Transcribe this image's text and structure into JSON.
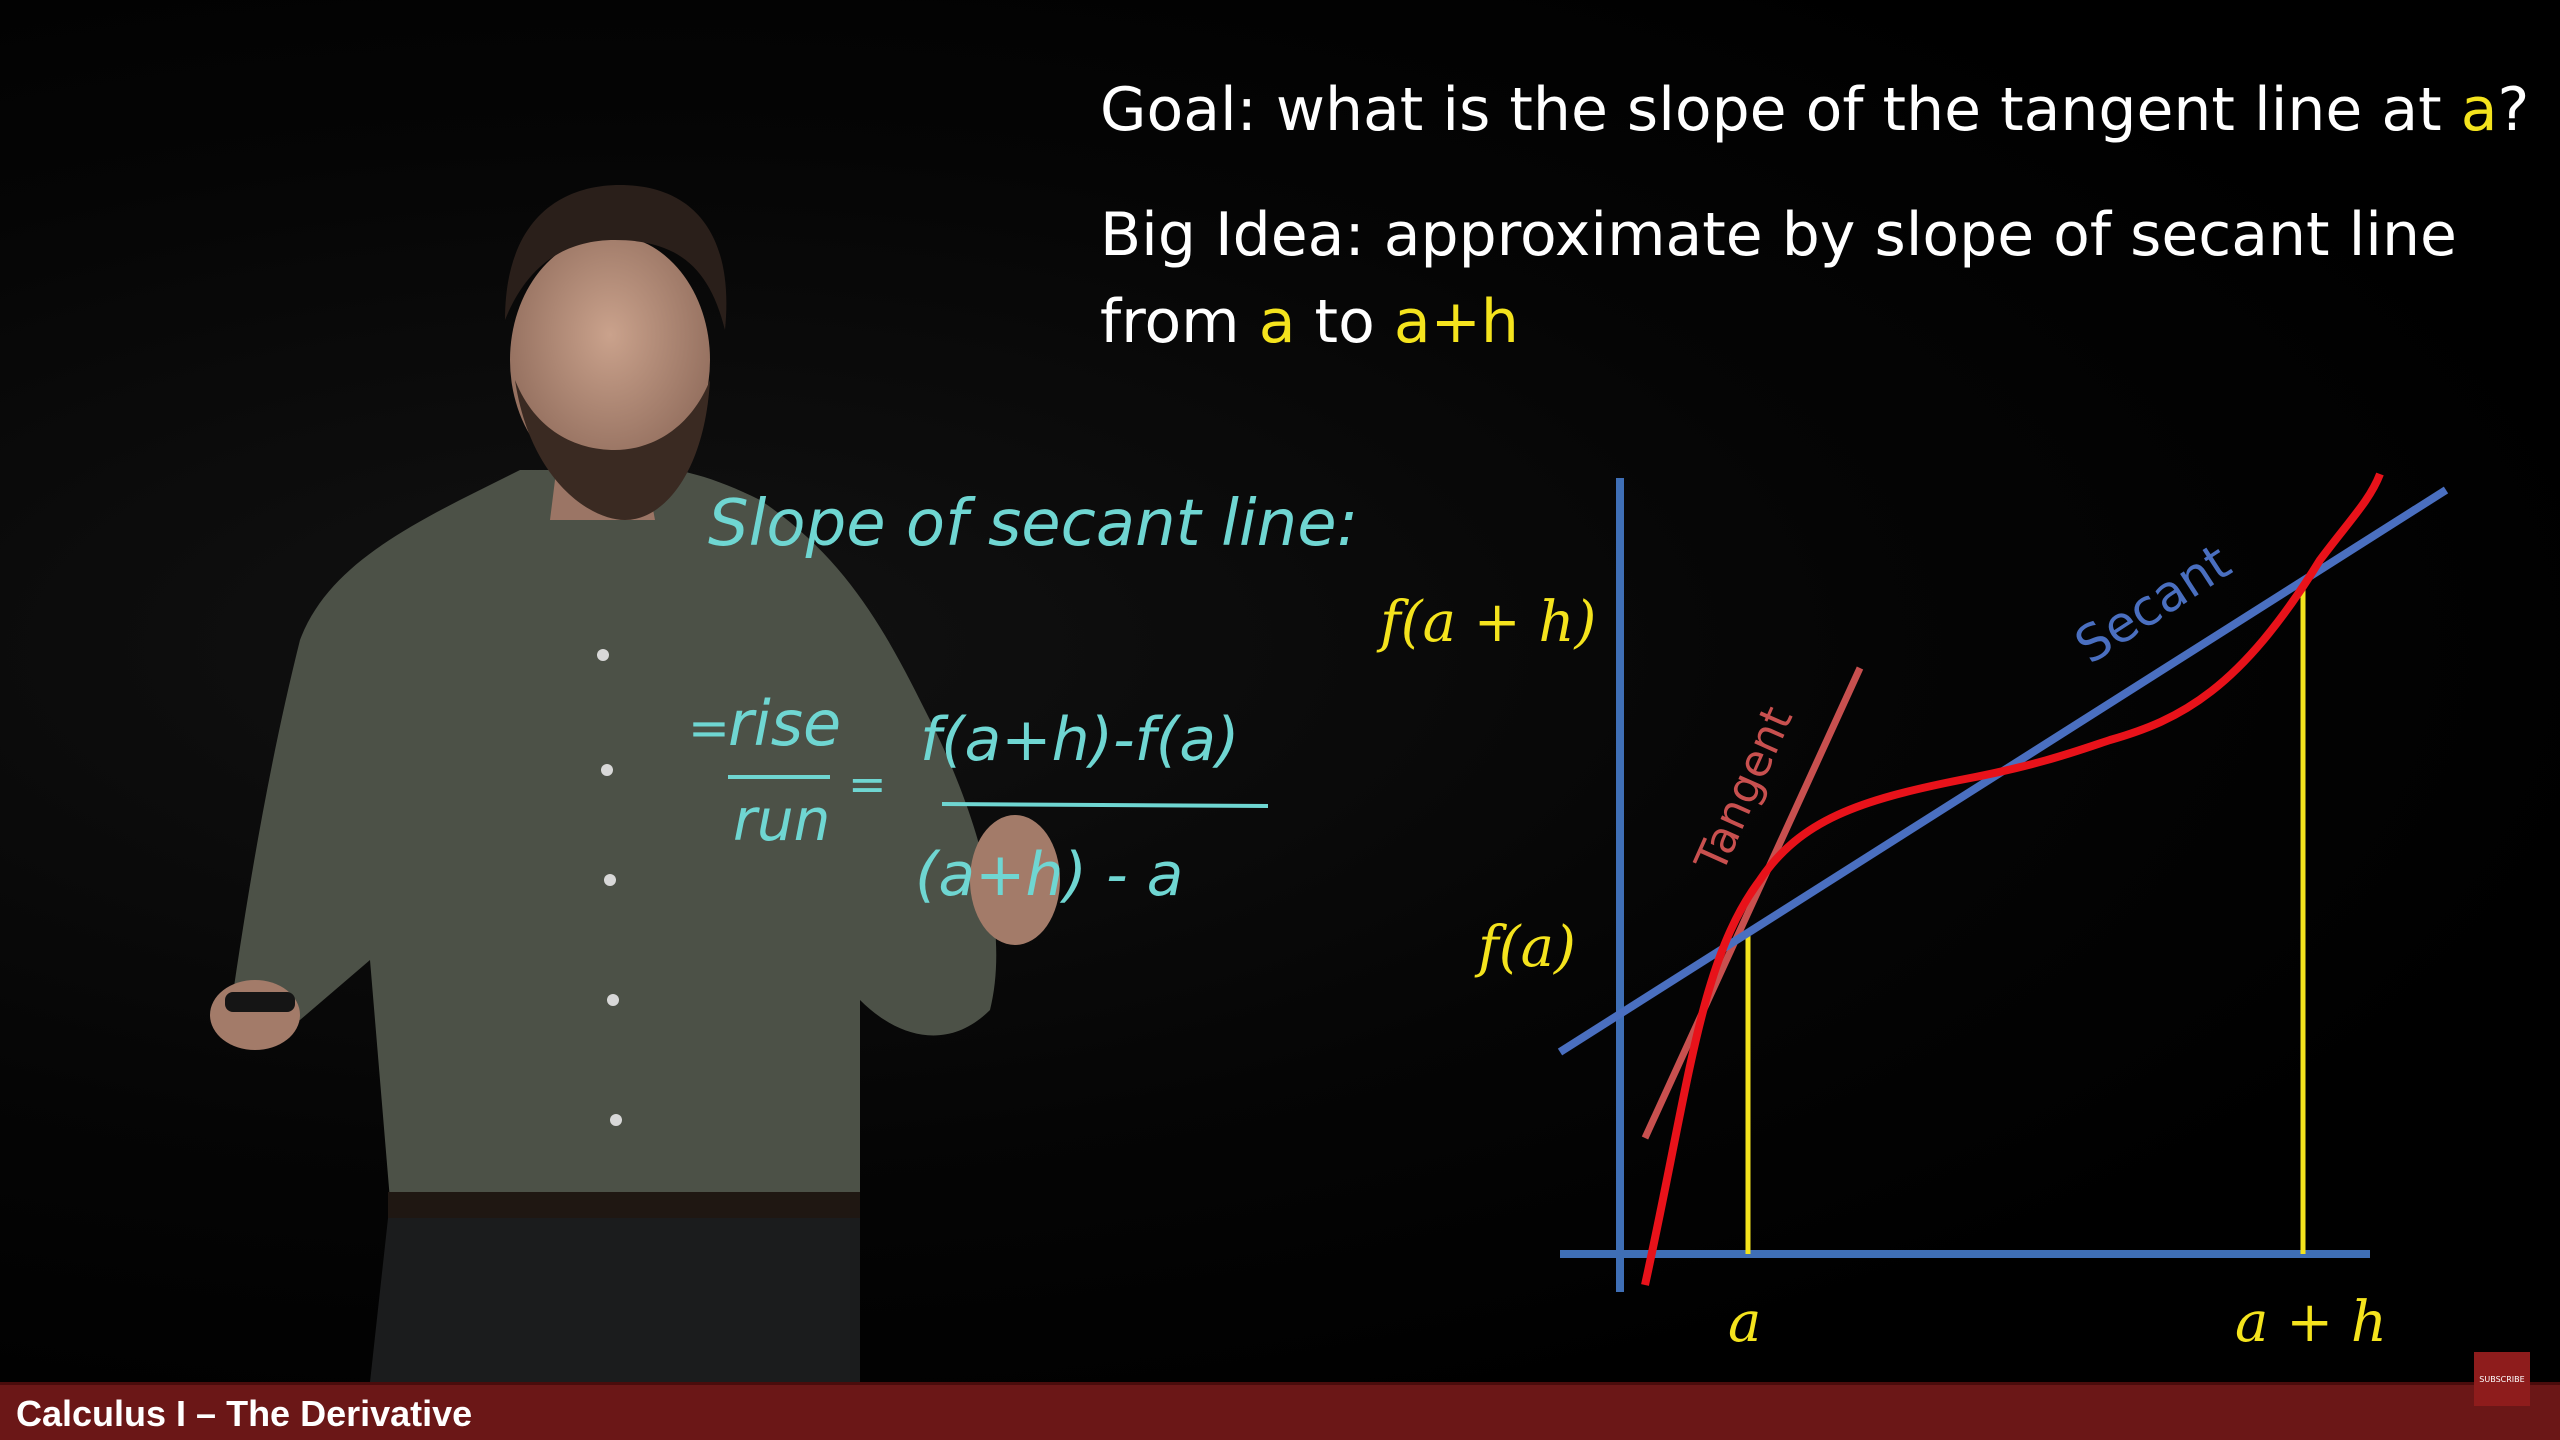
{
  "goal": {
    "prefix": "Goal: what is the slope of the tangent line at ",
    "highlight": "a",
    "suffix": "?"
  },
  "big_idea": {
    "line1": "Big Idea: approximate by slope of secant line",
    "line2_prefix": "from ",
    "line2_a": "a",
    "line2_mid": " to ",
    "line2_ah": "a+h"
  },
  "handwriting": {
    "heading": "Slope of secant line:",
    "rise": "rise",
    "run": "run",
    "numerator": "f(a+h)-f(a)",
    "denominator": "(a+h) - a",
    "equals": "=",
    "colon": ":"
  },
  "graph": {
    "label_fah": "f(a + h)",
    "label_fa": "f(a)",
    "label_a": "a",
    "label_ah": "a + h",
    "secant_label": "Secant",
    "tangent_label": "Tangent",
    "colors": {
      "axis": "#3f6fb6",
      "curve": "#e8121a",
      "tangent": "#c8504f",
      "secant": "#4a6fc0",
      "guide": "#f4e31d"
    }
  },
  "footer": {
    "course_title": "Calculus I – The Derivative",
    "subscribe_label": "SUBSCRIBE",
    "bar_color": "#6b1717"
  }
}
